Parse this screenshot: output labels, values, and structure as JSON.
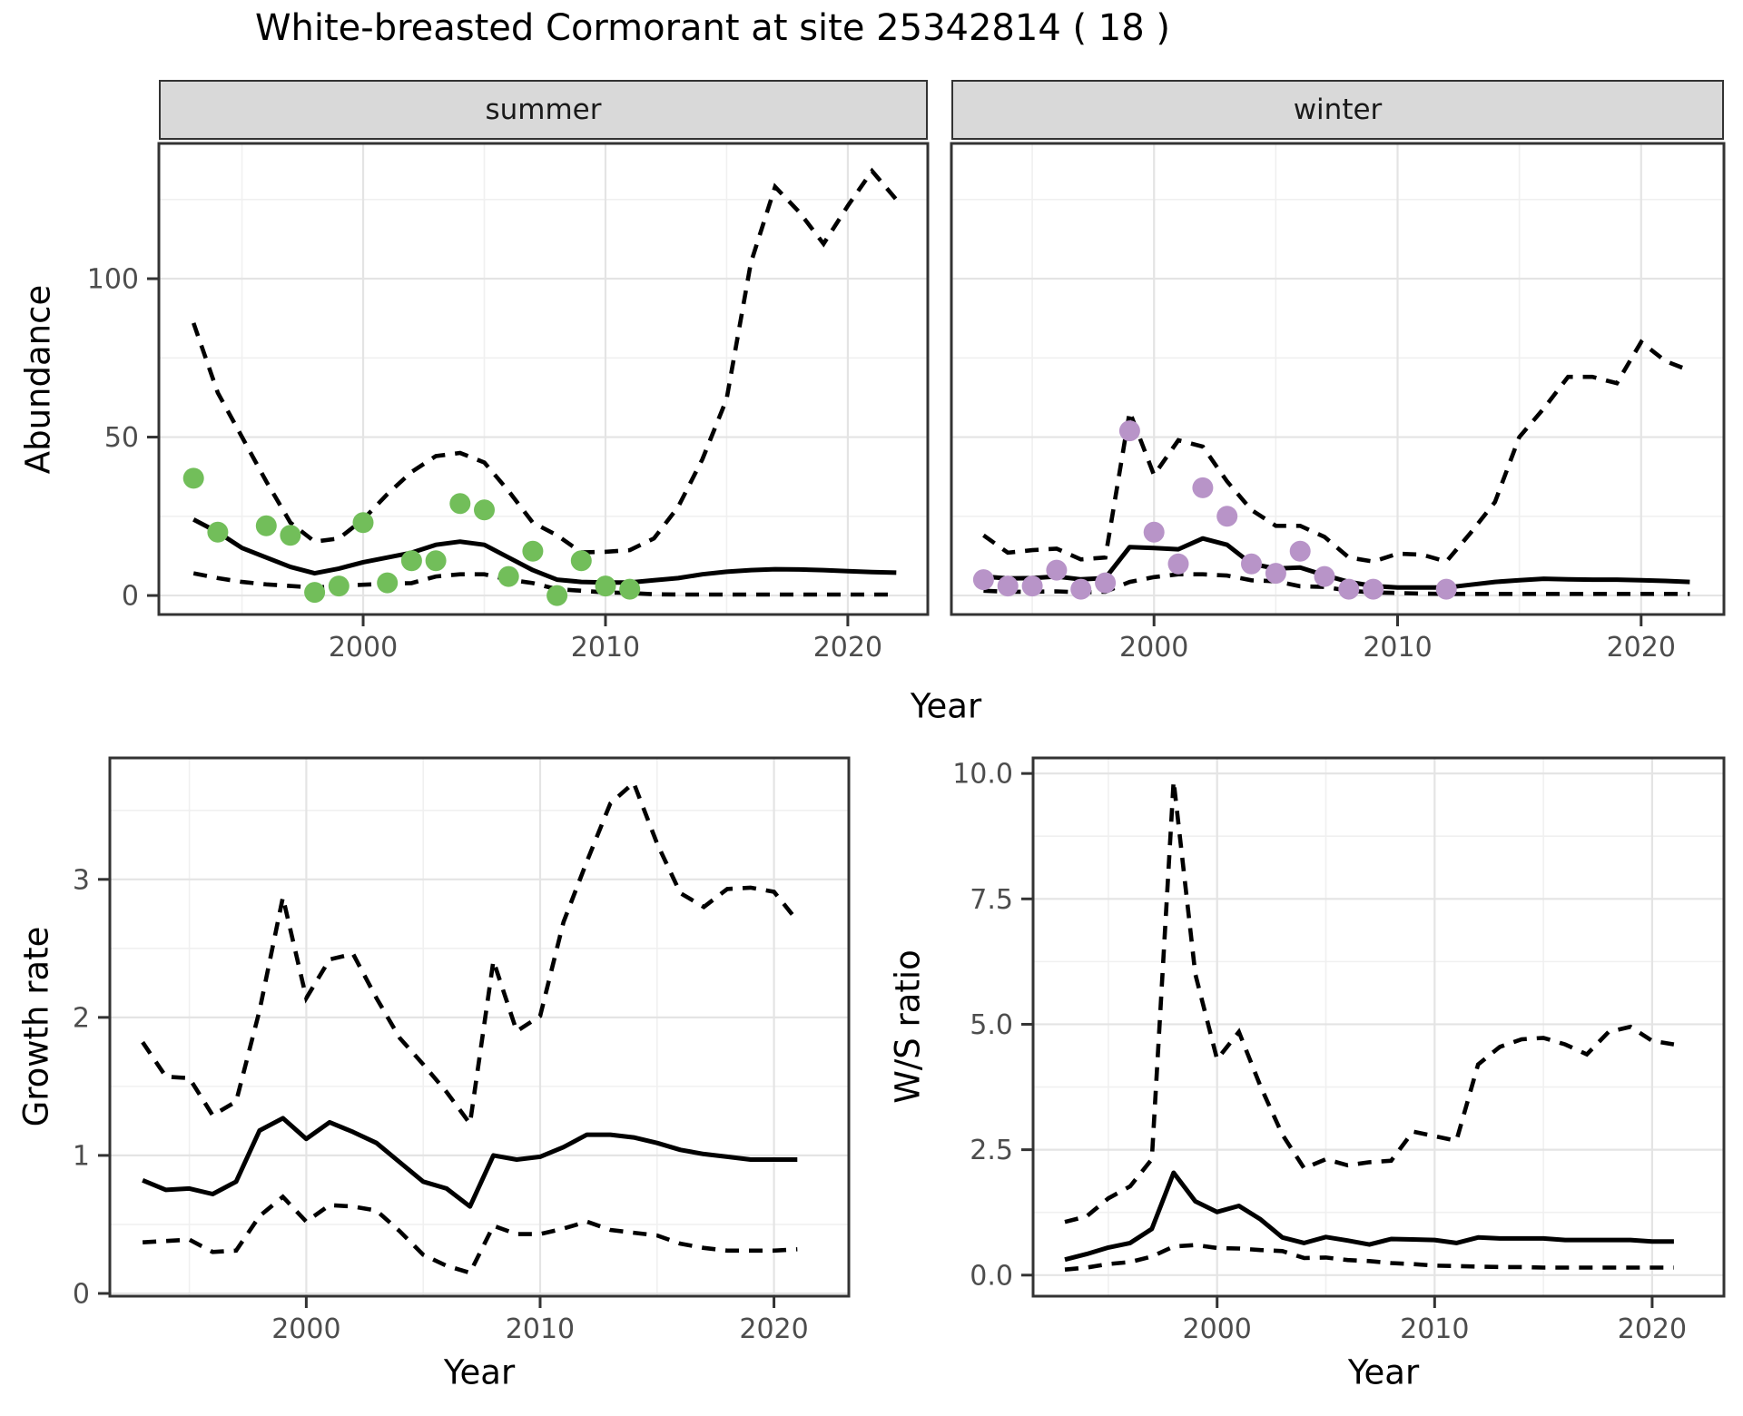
{
  "title": "White-breasted Cormorant at site 25342814 ( 18 )",
  "axis_labels": {
    "x": "Year",
    "y_abundance": "Abundance",
    "y_growth": "Growth rate",
    "y_ws": "W/S ratio"
  },
  "colors": {
    "summer_points": "#72BE5A",
    "winter_points": "#B894C8",
    "fit_line": "#000000",
    "ci_line": "#000000",
    "strip_bg": "#d9d9d9",
    "panel_border": "#333333",
    "grid_major": "#e4e4e4",
    "grid_minor": "#f0f0f0",
    "tick_text": "#4d4d4d"
  },
  "chart_data": [
    {
      "id": "abundance_summer",
      "type": "line",
      "facet": "summer",
      "title": "Abundance - summer facet",
      "xlabel": "Year",
      "ylabel": "Abundance",
      "legend": "none",
      "grid": true,
      "xlim": [
        1991.57,
        2023.3
      ],
      "ylim": [
        -6.0,
        142.7
      ],
      "x_ticks": {
        "values": [
          2000,
          2010,
          2020
        ],
        "labels": [
          "2000",
          "2010",
          "2020"
        ]
      },
      "x_minor": [
        1995,
        2005,
        2015
      ],
      "y_ticks": {
        "values": [
          0,
          50,
          100
        ],
        "labels": [
          "0",
          "50",
          "100"
        ]
      },
      "y_minor": [
        25,
        75,
        125
      ],
      "series": {
        "years": [
          1993,
          1994,
          1995,
          1996,
          1997,
          1998,
          1999,
          2000,
          2001,
          2002,
          2003,
          2004,
          2005,
          2006,
          2007,
          2008,
          2009,
          2010,
          2011,
          2012,
          2013,
          2014,
          2015,
          2016,
          2017,
          2018,
          2019,
          2020,
          2021,
          2022
        ],
        "fit": [
          24,
          20,
          15,
          12,
          9,
          7,
          8.5,
          10.5,
          12,
          13.5,
          16,
          17,
          16,
          12,
          8,
          5,
          4.3,
          4.1,
          4.1,
          4.8,
          5.5,
          6.7,
          7.5,
          8,
          8.3,
          8.2,
          8,
          7.7,
          7.4,
          7.2
        ],
        "lower": [
          7,
          5.5,
          4.3,
          3.5,
          3,
          2.5,
          3,
          3.4,
          3.7,
          3.9,
          6,
          6.7,
          6.7,
          5,
          3.9,
          2,
          1.5,
          1,
          0.8,
          0.4,
          0.3,
          0.3,
          0.3,
          0.3,
          0.3,
          0.3,
          0.3,
          0.3,
          0.3,
          0.3
        ],
        "upper": [
          86,
          64,
          50,
          36,
          23,
          17,
          18,
          24,
          32,
          39,
          44,
          45,
          42,
          33,
          23,
          19,
          13.6,
          13.8,
          14.3,
          18,
          28,
          43,
          62,
          105,
          129,
          121,
          111,
          123,
          134,
          125
        ]
      },
      "points": {
        "years": [
          1993,
          1994,
          1996,
          1997,
          1998,
          1999,
          2000,
          2001,
          2002,
          2003,
          2004,
          2005,
          2006,
          2007,
          2008,
          2009,
          2010,
          2011
        ],
        "values": [
          37,
          20,
          22,
          19,
          1,
          3,
          23,
          4,
          11,
          11,
          29,
          27,
          6,
          14,
          0,
          11,
          3,
          2
        ]
      }
    },
    {
      "id": "abundance_winter",
      "type": "line",
      "facet": "winter",
      "title": "Abundance - winter facet",
      "xlabel": "Year",
      "ylabel": "Abundance",
      "legend": "none",
      "grid": true,
      "xlim": [
        1991.68,
        2023.4
      ],
      "ylim": [
        -6.0,
        142.7
      ],
      "x_ticks": {
        "values": [
          2000,
          2010,
          2020
        ],
        "labels": [
          "2000",
          "2010",
          "2020"
        ]
      },
      "x_minor": [
        1995,
        2005,
        2015
      ],
      "y_ticks": {
        "values": [
          0,
          50,
          100
        ],
        "labels": [
          "0",
          "50",
          "100"
        ]
      },
      "y_minor": [
        25,
        75,
        125
      ],
      "series": {
        "years": [
          1993,
          1994,
          1995,
          1996,
          1997,
          1998,
          1999,
          2000,
          2001,
          2002,
          2003,
          2004,
          2005,
          2006,
          2007,
          2008,
          2009,
          2010,
          2011,
          2012,
          2013,
          2014,
          2015,
          2016,
          2017,
          2018,
          2019,
          2020,
          2021,
          2022
        ],
        "fit": [
          6,
          5.4,
          5.5,
          6,
          5.1,
          5.5,
          15.3,
          15,
          14.6,
          18,
          16,
          10,
          8.5,
          8.8,
          6.4,
          4.3,
          3,
          2.5,
          2.5,
          2.5,
          3.4,
          4.3,
          4.8,
          5.3,
          5.1,
          5,
          5,
          4.8,
          4.6,
          4.3
        ],
        "lower": [
          1.5,
          1.2,
          1.2,
          1.3,
          1,
          1.2,
          4.3,
          5.8,
          6.7,
          6.7,
          6.3,
          4.8,
          4.5,
          2.9,
          2.7,
          1.5,
          1,
          0.8,
          0.6,
          0.5,
          0.5,
          0.5,
          0.5,
          0.5,
          0.5,
          0.5,
          0.5,
          0.5,
          0.5,
          0.5
        ],
        "upper": [
          19,
          13.5,
          14.3,
          14.8,
          11.4,
          12,
          58,
          38,
          49,
          47,
          36,
          27,
          22,
          22,
          18.5,
          12,
          10.7,
          13.2,
          12.9,
          10.7,
          19.8,
          29.5,
          50,
          59,
          69,
          69,
          67,
          80,
          74,
          71
        ]
      },
      "points": {
        "years": [
          1993,
          1994,
          1995,
          1996,
          1997,
          1998,
          1999,
          2000,
          2001,
          2002,
          2003,
          2004,
          2005,
          2006,
          2007,
          2008,
          2009,
          2012
        ],
        "values": [
          5,
          3,
          3,
          8,
          2,
          4,
          52,
          20,
          10,
          34,
          25,
          10,
          7,
          14,
          6,
          2,
          2,
          2
        ]
      }
    },
    {
      "id": "growth",
      "type": "line",
      "facet": "",
      "title": "Growth rate",
      "xlabel": "Year",
      "ylabel": "Growth rate",
      "legend": "none",
      "grid": true,
      "xlim": [
        1991.6,
        2023.2
      ],
      "ylim": [
        -0.02,
        3.88
      ],
      "x_ticks": {
        "values": [
          2000,
          2010,
          2020
        ],
        "labels": [
          "2000",
          "2010",
          "2020"
        ]
      },
      "x_minor": [
        1995,
        2005,
        2015
      ],
      "y_ticks": {
        "values": [
          0,
          1,
          2,
          3
        ],
        "labels": [
          "0",
          "1",
          "2",
          "3"
        ]
      },
      "y_minor": [
        0.5,
        1.5,
        2.5,
        3.5
      ],
      "series": {
        "years": [
          1993,
          1994,
          1995,
          1996,
          1997,
          1998,
          1999,
          2000,
          2001,
          2002,
          2003,
          2004,
          2005,
          2006,
          2007,
          2008,
          2009,
          2010,
          2011,
          2012,
          2013,
          2014,
          2015,
          2016,
          2017,
          2018,
          2019,
          2020,
          2021
        ],
        "fit": [
          0.82,
          0.75,
          0.76,
          0.72,
          0.81,
          1.18,
          1.27,
          1.12,
          1.24,
          1.17,
          1.09,
          0.95,
          0.81,
          0.76,
          0.63,
          1.0,
          0.97,
          0.99,
          1.06,
          1.15,
          1.15,
          1.13,
          1.09,
          1.04,
          1.01,
          0.99,
          0.97,
          0.97,
          0.97
        ],
        "lower": [
          0.37,
          0.38,
          0.39,
          0.3,
          0.31,
          0.56,
          0.7,
          0.52,
          0.64,
          0.63,
          0.6,
          0.45,
          0.28,
          0.2,
          0.15,
          0.49,
          0.43,
          0.43,
          0.47,
          0.52,
          0.46,
          0.44,
          0.42,
          0.36,
          0.33,
          0.31,
          0.31,
          0.31,
          0.32
        ],
        "upper": [
          1.82,
          1.57,
          1.56,
          1.29,
          1.39,
          2.05,
          2.87,
          2.14,
          2.42,
          2.46,
          2.14,
          1.85,
          1.66,
          1.46,
          1.23,
          2.41,
          1.9,
          2.01,
          2.69,
          3.13,
          3.55,
          3.7,
          3.26,
          2.9,
          2.8,
          2.93,
          2.94,
          2.91,
          2.7
        ]
      },
      "points": {
        "years": [],
        "values": []
      }
    },
    {
      "id": "ws",
      "type": "line",
      "facet": "",
      "title": "W/S ratio",
      "xlabel": "Year",
      "ylabel": "W/S ratio",
      "legend": "none",
      "grid": true,
      "xlim": [
        1991.54,
        2023.3
      ],
      "ylim": [
        -0.42,
        10.31
      ],
      "x_ticks": {
        "values": [
          2000,
          2010,
          2020
        ],
        "labels": [
          "2000",
          "2010",
          "2020"
        ]
      },
      "x_minor": [
        1995,
        2005,
        2015
      ],
      "y_ticks": {
        "values": [
          0,
          2.5,
          5,
          7.5,
          10
        ],
        "labels": [
          "0.0",
          "2.5",
          "5.0",
          "7.5",
          "10.0"
        ]
      },
      "y_minor": [
        1.25,
        3.75,
        6.25,
        8.75
      ],
      "series": {
        "years": [
          1993,
          1994,
          1995,
          1996,
          1997,
          1998,
          1999,
          2000,
          2001,
          2002,
          2003,
          2004,
          2005,
          2006,
          2007,
          2008,
          2009,
          2010,
          2011,
          2012,
          2013,
          2014,
          2015,
          2016,
          2017,
          2018,
          2019,
          2020,
          2021
        ],
        "fit": [
          0.31,
          0.42,
          0.55,
          0.64,
          0.92,
          2.04,
          1.47,
          1.26,
          1.38,
          1.11,
          0.75,
          0.64,
          0.76,
          0.69,
          0.61,
          0.72,
          0.71,
          0.7,
          0.64,
          0.75,
          0.73,
          0.73,
          0.73,
          0.7,
          0.7,
          0.7,
          0.7,
          0.67,
          0.67
        ],
        "lower": [
          0.11,
          0.15,
          0.22,
          0.26,
          0.37,
          0.57,
          0.6,
          0.54,
          0.53,
          0.5,
          0.48,
          0.34,
          0.35,
          0.3,
          0.28,
          0.24,
          0.22,
          0.19,
          0.18,
          0.17,
          0.16,
          0.16,
          0.15,
          0.15,
          0.15,
          0.15,
          0.15,
          0.15,
          0.15
        ],
        "upper": [
          1.06,
          1.17,
          1.53,
          1.77,
          2.31,
          9.85,
          6.0,
          4.3,
          4.85,
          3.76,
          2.8,
          2.13,
          2.31,
          2.19,
          2.25,
          2.28,
          2.86,
          2.77,
          2.68,
          4.2,
          4.55,
          4.7,
          4.73,
          4.6,
          4.4,
          4.85,
          4.95,
          4.67,
          4.6
        ]
      },
      "points": {
        "years": [],
        "values": []
      }
    }
  ]
}
